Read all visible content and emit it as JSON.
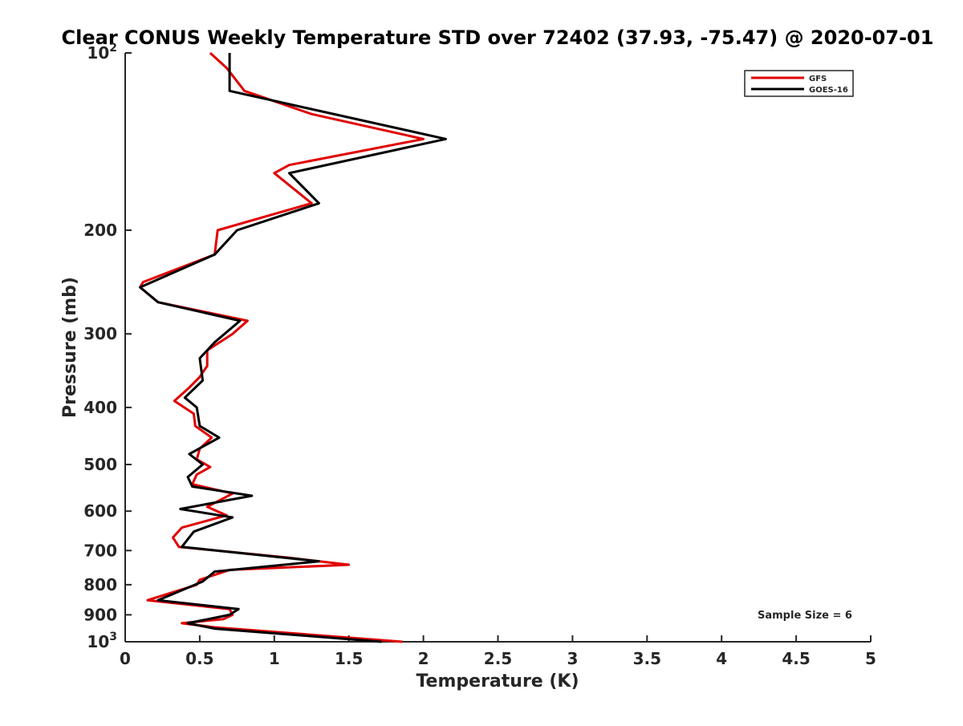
{
  "chart_data": {
    "type": "line",
    "title": "Clear CONUS Weekly Temperature STD over 72402 (37.93, -75.47) @ 2020-07-01",
    "xlabel": "Temperature (K)",
    "ylabel": "Pressure (mb)",
    "xlim": [
      0,
      5
    ],
    "ylim": [
      100,
      1000
    ],
    "y_scale": "log",
    "y_reversed": true,
    "x_ticks": [
      {
        "value": 0,
        "label": "0"
      },
      {
        "value": 0.5,
        "label": "0.5"
      },
      {
        "value": 1,
        "label": "1"
      },
      {
        "value": 1.5,
        "label": "1.5"
      },
      {
        "value": 2,
        "label": "2"
      },
      {
        "value": 2.5,
        "label": "2.5"
      },
      {
        "value": 3,
        "label": "3"
      },
      {
        "value": 3.5,
        "label": "3.5"
      },
      {
        "value": 4,
        "label": "4"
      },
      {
        "value": 4.5,
        "label": "4.5"
      },
      {
        "value": 5,
        "label": "5"
      }
    ],
    "y_ticks": [
      {
        "value": 100,
        "label": "10",
        "sup": "2"
      },
      {
        "value": 200,
        "label": "200"
      },
      {
        "value": 300,
        "label": "300"
      },
      {
        "value": 400,
        "label": "400"
      },
      {
        "value": 500,
        "label": "500"
      },
      {
        "value": 600,
        "label": "600"
      },
      {
        "value": 700,
        "label": "700"
      },
      {
        "value": 800,
        "label": "800"
      },
      {
        "value": 900,
        "label": "900"
      },
      {
        "value": 1000,
        "label": "10",
        "sup": "3"
      }
    ],
    "grid": false,
    "legend_position": "top-right",
    "annotation": "Sample Size = 6",
    "series": [
      {
        "name": "GFS",
        "color": "#e00000",
        "points": [
          [
            0.57,
            100
          ],
          [
            0.68,
            106
          ],
          [
            0.8,
            116
          ],
          [
            1.25,
            127
          ],
          [
            2.0,
            140
          ],
          [
            1.1,
            155
          ],
          [
            1.0,
            160
          ],
          [
            1.25,
            180
          ],
          [
            0.62,
            200
          ],
          [
            0.6,
            220
          ],
          [
            0.12,
            245
          ],
          [
            0.1,
            250
          ],
          [
            0.22,
            265
          ],
          [
            0.82,
            285
          ],
          [
            0.72,
            300
          ],
          [
            0.55,
            320
          ],
          [
            0.55,
            340
          ],
          [
            0.5,
            355
          ],
          [
            0.43,
            370
          ],
          [
            0.33,
            390
          ],
          [
            0.46,
            410
          ],
          [
            0.47,
            430
          ],
          [
            0.58,
            450
          ],
          [
            0.5,
            470
          ],
          [
            0.48,
            490
          ],
          [
            0.57,
            505
          ],
          [
            0.48,
            520
          ],
          [
            0.45,
            540
          ],
          [
            0.72,
            560
          ],
          [
            0.55,
            590
          ],
          [
            0.68,
            610
          ],
          [
            0.38,
            640
          ],
          [
            0.32,
            665
          ],
          [
            0.36,
            690
          ],
          [
            1.1,
            720
          ],
          [
            1.5,
            740
          ],
          [
            0.7,
            755
          ],
          [
            0.5,
            785
          ],
          [
            0.48,
            800
          ],
          [
            0.15,
            850
          ],
          [
            0.7,
            880
          ],
          [
            0.72,
            900
          ],
          [
            0.66,
            915
          ],
          [
            0.38,
            930
          ],
          [
            0.6,
            945
          ],
          [
            1.86,
            1000
          ]
        ]
      },
      {
        "name": "GOES-16",
        "color": "#000000",
        "points": [
          [
            0.7,
            100
          ],
          [
            0.7,
            116
          ],
          [
            2.15,
            140
          ],
          [
            1.1,
            160
          ],
          [
            1.3,
            180
          ],
          [
            0.75,
            200
          ],
          [
            0.6,
            220
          ],
          [
            0.1,
            250
          ],
          [
            0.22,
            265
          ],
          [
            0.77,
            285
          ],
          [
            0.6,
            310
          ],
          [
            0.5,
            330
          ],
          [
            0.52,
            360
          ],
          [
            0.4,
            385
          ],
          [
            0.48,
            400
          ],
          [
            0.5,
            430
          ],
          [
            0.63,
            450
          ],
          [
            0.43,
            480
          ],
          [
            0.52,
            500
          ],
          [
            0.42,
            525
          ],
          [
            0.45,
            545
          ],
          [
            0.85,
            565
          ],
          [
            0.37,
            595
          ],
          [
            0.72,
            615
          ],
          [
            0.46,
            650
          ],
          [
            0.38,
            690
          ],
          [
            1.3,
            730
          ],
          [
            0.6,
            760
          ],
          [
            0.52,
            790
          ],
          [
            0.22,
            850
          ],
          [
            0.76,
            880
          ],
          [
            0.7,
            900
          ],
          [
            0.42,
            930
          ],
          [
            0.6,
            950
          ],
          [
            1.72,
            1000
          ]
        ]
      }
    ]
  }
}
